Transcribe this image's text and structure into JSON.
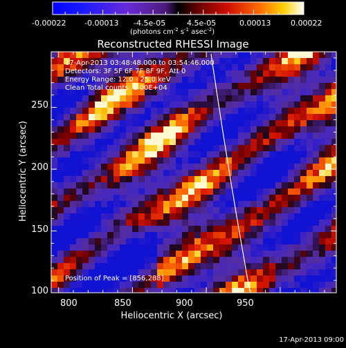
{
  "colorbar": {
    "tick_labels": [
      "-0.00022",
      "-0.00013",
      "-4.5e-05",
      "4.5e-05",
      "0.00013",
      "0.00022"
    ],
    "units_prefix": "(photons cm",
    "units_sup1": "-2",
    "units_mid": " s",
    "units_sup2": "-1",
    "units_mid2": " asec",
    "units_sup3": "-2",
    "units_suffix": ")"
  },
  "image": {
    "title": "Reconstructed RHESSI Image",
    "annotations": [
      "17-Apr-2013 03:48:48.000 to 03:54:46.000",
      "Detectors: 3F 5F 6F 7F 8F 9F, Att 0",
      "Energy Range: 12.0 - 25.0 keV",
      "Clean     Total counts: 1.00E+04"
    ],
    "peak_label": "Position of Peak = [856,288]",
    "xlabel": "Heliocentric X (arcsec)",
    "ylabel": "Heliocentric Y (arcsec)",
    "x_ticks": [
      "800",
      "850",
      "900",
      "950"
    ],
    "y_ticks": [
      "100",
      "150",
      "200",
      "250"
    ],
    "x_range": [
      795,
      988
    ],
    "y_range": [
      100,
      295
    ],
    "limb_color": "#ffffff"
  },
  "footer": {
    "timestamp": "17-Apr-2013 09:00"
  }
}
